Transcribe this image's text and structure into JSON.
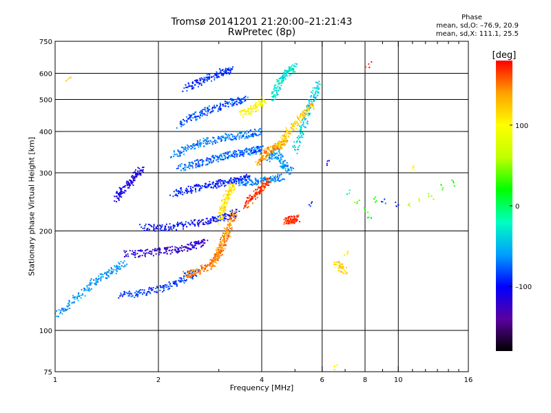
{
  "header": {
    "title_line1": "Tromsø 20141201 21:20:00–21:21:43",
    "title_line2": "RwPretec (8p)",
    "phase_title": "Phase",
    "phase_stats_o": "mean, sd,O: –76.9, 20.9",
    "phase_stats_x": "mean, sd,X: 111.1, 25.5"
  },
  "chart_data": {
    "type": "scatter",
    "xlabel": "Frequency [MHz]",
    "ylabel": "Stationary phase Virtual Height [km]",
    "x_scale": "log",
    "y_scale": "log",
    "xlim": [
      1,
      16
    ],
    "ylim": [
      75,
      750
    ],
    "x_ticks": [
      1,
      2,
      4,
      6,
      8,
      10,
      16
    ],
    "x_tick_labels": [
      "1",
      "2",
      "4",
      "6",
      "8",
      "10",
      "16"
    ],
    "x_minor_ticks": [
      3,
      5,
      7,
      9,
      11,
      12,
      13,
      14,
      15
    ],
    "y_ticks": [
      75,
      100,
      200,
      300,
      400,
      500,
      600,
      750
    ],
    "y_tick_labels": [
      "75",
      "100",
      "200",
      "300",
      "400",
      "500",
      "600",
      "750"
    ],
    "x_gridlines": [
      2,
      4,
      6,
      8,
      10
    ],
    "y_gridlines": [
      100,
      200,
      300,
      400,
      500,
      600
    ],
    "grid": true,
    "colorbar": {
      "label": "[deg]",
      "range": [
        -180,
        180
      ],
      "tick_values": [
        100,
        0,
        -100
      ],
      "tick_labels": [
        "100",
        "0",
        "–100"
      ],
      "colormap": [
        "#000000",
        "#5a00a0",
        "#0000ff",
        "#00a0ff",
        "#00ffc0",
        "#00ff00",
        "#c0ff00",
        "#ffff00",
        "#ffa000",
        "#ff0000"
      ]
    },
    "series": [
      {
        "mode": "O",
        "phase_deg": -80,
        "traces": [
          {
            "f": [
              1.0,
              1.15,
              1.3,
              1.45,
              1.6
            ],
            "h": [
              110,
              125,
              140,
              150,
              160
            ],
            "phase": -60
          },
          {
            "f": [
              1.55,
              1.8,
              2.1,
              2.4,
              2.6
            ],
            "h": [
              128,
              130,
              135,
              145,
              150
            ],
            "phase": -85
          },
          {
            "f": [
              1.6,
              1.9,
              2.2,
              2.5,
              2.75
            ],
            "h": [
              170,
              172,
              175,
              180,
              185
            ],
            "phase": -120
          },
          {
            "f": [
              1.8,
              2.1,
              2.4,
              2.8,
              3.1,
              3.4
            ],
            "h": [
              205,
              205,
              208,
              215,
              220,
              228
            ],
            "phase": -100
          },
          {
            "f": [
              2.2,
              2.5,
              2.8,
              3.1,
              3.4,
              3.7
            ],
            "h": [
              260,
              268,
              275,
              280,
              285,
              290
            ],
            "phase": -95
          },
          {
            "f": [
              2.3,
              2.6,
              2.9,
              3.2,
              3.5,
              3.8,
              4.0
            ],
            "h": [
              310,
              320,
              330,
              340,
              345,
              350,
              355
            ],
            "phase": -75
          },
          {
            "f": [
              2.2,
              2.5,
              2.8,
              3.2,
              3.6,
              4.0
            ],
            "h": [
              340,
              360,
              375,
              385,
              392,
              400
            ],
            "phase": -70
          },
          {
            "f": [
              2.3,
              2.6,
              2.9,
              3.3,
              3.6
            ],
            "h": [
              420,
              450,
              470,
              490,
              500
            ],
            "phase": -80
          },
          {
            "f": [
              2.4,
              2.7,
              3.0,
              3.3
            ],
            "h": [
              540,
              570,
              600,
              620
            ],
            "phase": -90
          },
          {
            "f": [
              3.4,
              3.8,
              4.2,
              4.6
            ],
            "h": [
              280,
              282,
              285,
              290
            ],
            "phase": -65
          },
          {
            "f": [
              4.2,
              4.4,
              4.6,
              4.9
            ],
            "h": [
              330,
              350,
              320,
              300
            ],
            "phase": -60
          },
          {
            "f": [
              1.5,
              1.6,
              1.7,
              1.8
            ],
            "h": [
              250,
              270,
              290,
              310
            ],
            "phase": -110
          },
          {
            "f": [
              5.0,
              5.3,
              5.6,
              5.9
            ],
            "h": [
              350,
              420,
              500,
              560
            ],
            "phase": -40
          },
          {
            "f": [
              4.3,
              4.5,
              4.7,
              5.0
            ],
            "h": [
              500,
              560,
              600,
              630
            ],
            "phase": -30
          }
        ]
      },
      {
        "mode": "X",
        "phase_deg": 110,
        "traces": [
          {
            "f": [
              2.4,
              2.6,
              2.85,
              3.05,
              3.2
            ],
            "h": [
              148,
              150,
              158,
              175,
              200
            ],
            "phase": 150
          },
          {
            "f": [
              2.9,
              3.05,
              3.2,
              3.35
            ],
            "h": [
              160,
              180,
              205,
              230
            ],
            "phase": 140
          },
          {
            "f": [
              3.0,
              3.1,
              3.2,
              3.3
            ],
            "h": [
              215,
              240,
              260,
              275
            ],
            "phase": 110
          },
          {
            "f": [
              3.6,
              3.8,
              4.0,
              4.2
            ],
            "h": [
              240,
              255,
              270,
              285
            ],
            "phase": 165
          },
          {
            "f": [
              3.9,
              4.1,
              4.4,
              4.7
            ],
            "h": [
              320,
              345,
              360,
              375
            ],
            "phase": 140
          },
          {
            "f": [
              4.5,
              4.8,
              5.2,
              5.6
            ],
            "h": [
              360,
              400,
              440,
              480
            ],
            "phase": 120
          },
          {
            "f": [
              4.7,
              4.9,
              5.1
            ],
            "h": [
              215,
              216,
              218
            ],
            "phase": 170
          },
          {
            "f": [
              3.5,
              3.8,
              4.1
            ],
            "h": [
              450,
              470,
              500
            ],
            "phase": 100
          },
          {
            "f": [
              6.6,
              7.0
            ],
            "h": [
              160,
              150
            ],
            "phase": 120
          }
        ]
      },
      {
        "mode": "scattered",
        "points": [
          {
            "f": 7.6,
            "h": 245,
            "phase": 40
          },
          {
            "f": 8.0,
            "h": 230,
            "phase": 30
          },
          {
            "f": 8.2,
            "h": 220,
            "phase": 10
          },
          {
            "f": 8.5,
            "h": 250,
            "phase": 20
          },
          {
            "f": 7.2,
            "h": 260,
            "phase": -20
          },
          {
            "f": 9.0,
            "h": 245,
            "phase": -80
          },
          {
            "f": 10.0,
            "h": 240,
            "phase": -100
          },
          {
            "f": 10.8,
            "h": 238,
            "phase": 60
          },
          {
            "f": 11.5,
            "h": 250,
            "phase": 80
          },
          {
            "f": 12.5,
            "h": 255,
            "phase": 50
          },
          {
            "f": 13.5,
            "h": 270,
            "phase": 40
          },
          {
            "f": 14.5,
            "h": 280,
            "phase": 20
          },
          {
            "f": 6.5,
            "h": 78,
            "phase": 100
          },
          {
            "f": 7.1,
            "h": 170,
            "phase": 110
          },
          {
            "f": 8.2,
            "h": 640,
            "phase": 170
          },
          {
            "f": 1.1,
            "h": 580,
            "phase": 120
          },
          {
            "f": 6.2,
            "h": 320,
            "phase": -110
          },
          {
            "f": 5.5,
            "h": 240,
            "phase": -90
          },
          {
            "f": 11.0,
            "h": 310,
            "phase": 100
          }
        ]
      }
    ]
  }
}
